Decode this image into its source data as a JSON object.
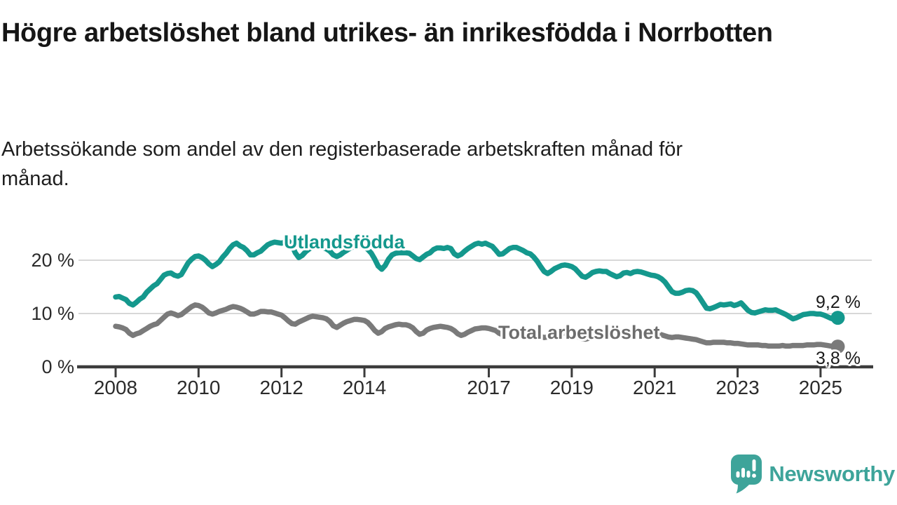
{
  "header": {
    "title": "Högre arbetslöshet bland utrikes- än inrikesfödda i Norrbotten",
    "subtitle": "Arbetssökande som andel av den registerbaserade arbetskraften månad för månad."
  },
  "footer": {
    "brand": "Newsworthy"
  },
  "colors": {
    "teal_line": "#14988d",
    "gray_line": "#7a7a7a",
    "axis": "#3c3c3c",
    "gridline": "#d8d8d8",
    "brand_teal": "#3ea49a"
  },
  "chart_data": {
    "type": "line",
    "title": "Högre arbetslöshet bland utrikes- än inrikesfödda i Norrbotten",
    "subtitle": "Arbetssökande som andel av den registerbaserade arbetskraften månad för månad.",
    "unit": "%",
    "x_start": {
      "year": 2008,
      "month": 1
    },
    "x_end": {
      "year": 2025,
      "month": 6
    },
    "step_months": 1,
    "x_tick_labels": [
      "2008",
      "2010",
      "2012",
      "2014",
      "2017",
      "2019",
      "2021",
      "2023",
      "2025"
    ],
    "y_ticks": [
      {
        "value": 0,
        "label": "0 %"
      },
      {
        "value": 10,
        "label": "10 %"
      },
      {
        "value": 20,
        "label": "20 %"
      }
    ],
    "ylim": [
      0,
      25
    ],
    "grid": "horizontal",
    "legend_position": "inline-labels",
    "series": [
      {
        "name": "Utlandsfödda",
        "color": "#14988d",
        "end_value": 9.2,
        "end_label": "9,2 %",
        "values": [
          13.1,
          13.2,
          12.9,
          12.6,
          11.9,
          11.6,
          12.1,
          12.7,
          13.1,
          14.0,
          14.6,
          15.2,
          15.6,
          16.4,
          17.2,
          17.5,
          17.6,
          17.2,
          17.0,
          17.3,
          18.4,
          19.5,
          20.2,
          20.7,
          20.8,
          20.5,
          20.0,
          19.3,
          18.8,
          19.2,
          19.7,
          20.6,
          21.3,
          22.2,
          22.9,
          23.2,
          22.7,
          22.4,
          21.8,
          21.0,
          21.0,
          21.4,
          21.7,
          22.3,
          22.9,
          23.2,
          23.4,
          23.3,
          23.2,
          23.4,
          23.6,
          22.8,
          21.4,
          20.5,
          20.9,
          21.6,
          22.1,
          22.5,
          22.7,
          22.5,
          22.4,
          22.1,
          21.7,
          21.0,
          20.7,
          21.0,
          21.5,
          21.9,
          22.3,
          22.6,
          22.8,
          22.7,
          22.5,
          22.0,
          21.3,
          20.2,
          18.9,
          18.3,
          19.0,
          20.2,
          21.0,
          21.3,
          21.4,
          21.4,
          21.4,
          21.3,
          20.8,
          20.3,
          20.1,
          20.6,
          21.1,
          21.4,
          22.0,
          22.3,
          22.3,
          22.2,
          22.4,
          22.2,
          21.2,
          20.8,
          21.1,
          21.7,
          22.2,
          22.6,
          23.0,
          23.2,
          23.0,
          23.2,
          22.9,
          22.6,
          21.9,
          21.1,
          21.2,
          21.7,
          22.2,
          22.4,
          22.4,
          22.1,
          21.8,
          21.4,
          21.2,
          20.6,
          19.8,
          18.8,
          17.9,
          17.5,
          17.9,
          18.4,
          18.7,
          19.0,
          19.1,
          19.0,
          18.8,
          18.4,
          17.7,
          17.0,
          16.8,
          17.2,
          17.7,
          17.9,
          18.0,
          17.9,
          17.9,
          17.5,
          17.2,
          16.9,
          17.1,
          17.6,
          17.7,
          17.5,
          17.8,
          17.9,
          17.8,
          17.6,
          17.4,
          17.2,
          17.1,
          16.9,
          16.5,
          15.9,
          15.0,
          14.1,
          13.8,
          13.8,
          14.0,
          14.3,
          14.4,
          14.3,
          13.9,
          13.0,
          12.0,
          11.0,
          10.9,
          11.1,
          11.4,
          11.7,
          11.6,
          11.7,
          11.8,
          11.5,
          11.7,
          12.0,
          11.3,
          10.6,
          10.2,
          10.1,
          10.3,
          10.5,
          10.7,
          10.6,
          10.6,
          10.7,
          10.4,
          10.1,
          9.8,
          9.4,
          9.0,
          9.2,
          9.5,
          9.8,
          9.9,
          10.0,
          10.0,
          9.9,
          9.9,
          9.7,
          9.4,
          9.1,
          8.9,
          9.2
        ]
      },
      {
        "name": "Total arbetslöshet",
        "color": "#7a7a7a",
        "end_value": 3.8,
        "end_label": "3,8 %",
        "values": [
          7.6,
          7.5,
          7.3,
          7.0,
          6.3,
          5.9,
          6.2,
          6.4,
          6.8,
          7.2,
          7.6,
          7.9,
          8.1,
          8.7,
          9.3,
          9.9,
          10.1,
          9.9,
          9.6,
          9.8,
          10.3,
          10.8,
          11.3,
          11.6,
          11.5,
          11.2,
          10.7,
          10.1,
          9.9,
          10.1,
          10.4,
          10.6,
          10.8,
          11.1,
          11.3,
          11.2,
          11.0,
          10.7,
          10.3,
          9.9,
          9.9,
          10.1,
          10.4,
          10.4,
          10.3,
          10.3,
          10.1,
          9.9,
          9.7,
          9.2,
          8.6,
          8.1,
          8.0,
          8.4,
          8.7,
          9.0,
          9.3,
          9.5,
          9.4,
          9.3,
          9.2,
          9.0,
          8.5,
          7.7,
          7.4,
          7.8,
          8.2,
          8.5,
          8.7,
          8.9,
          8.9,
          8.8,
          8.7,
          8.3,
          7.6,
          6.8,
          6.3,
          6.6,
          7.2,
          7.5,
          7.7,
          7.9,
          8.0,
          7.9,
          7.9,
          7.7,
          7.3,
          6.6,
          6.1,
          6.3,
          6.9,
          7.2,
          7.4,
          7.5,
          7.6,
          7.5,
          7.4,
          7.2,
          6.8,
          6.2,
          5.9,
          6.1,
          6.5,
          6.8,
          7.1,
          7.2,
          7.3,
          7.3,
          7.2,
          7.0,
          6.8,
          6.3,
          6.0,
          6.2,
          6.5,
          6.7,
          6.8,
          6.9,
          6.8,
          6.7,
          6.6,
          6.4,
          6.1,
          5.7,
          5.5,
          5.6,
          5.9,
          6.1,
          6.2,
          6.3,
          6.3,
          6.2,
          6.1,
          5.9,
          5.6,
          5.3,
          5.2,
          5.4,
          5.7,
          5.8,
          5.9,
          6.0,
          6.0,
          6.0,
          6.1,
          6.0,
          6.2,
          6.6,
          6.8,
          6.7,
          6.8,
          6.8,
          6.7,
          6.6,
          6.5,
          6.4,
          6.3,
          6.2,
          6.0,
          5.8,
          5.6,
          5.5,
          5.6,
          5.6,
          5.5,
          5.4,
          5.3,
          5.2,
          5.1,
          4.9,
          4.7,
          4.5,
          4.5,
          4.6,
          4.6,
          4.6,
          4.6,
          4.5,
          4.5,
          4.4,
          4.4,
          4.3,
          4.2,
          4.1,
          4.1,
          4.1,
          4.1,
          4.0,
          4.0,
          3.9,
          3.9,
          3.9,
          3.9,
          4.0,
          3.9,
          3.9,
          4.0,
          4.0,
          4.0,
          4.0,
          4.1,
          4.1,
          4.1,
          4.2,
          4.2,
          4.1,
          4.0,
          3.9,
          3.9,
          3.8
        ]
      }
    ]
  }
}
